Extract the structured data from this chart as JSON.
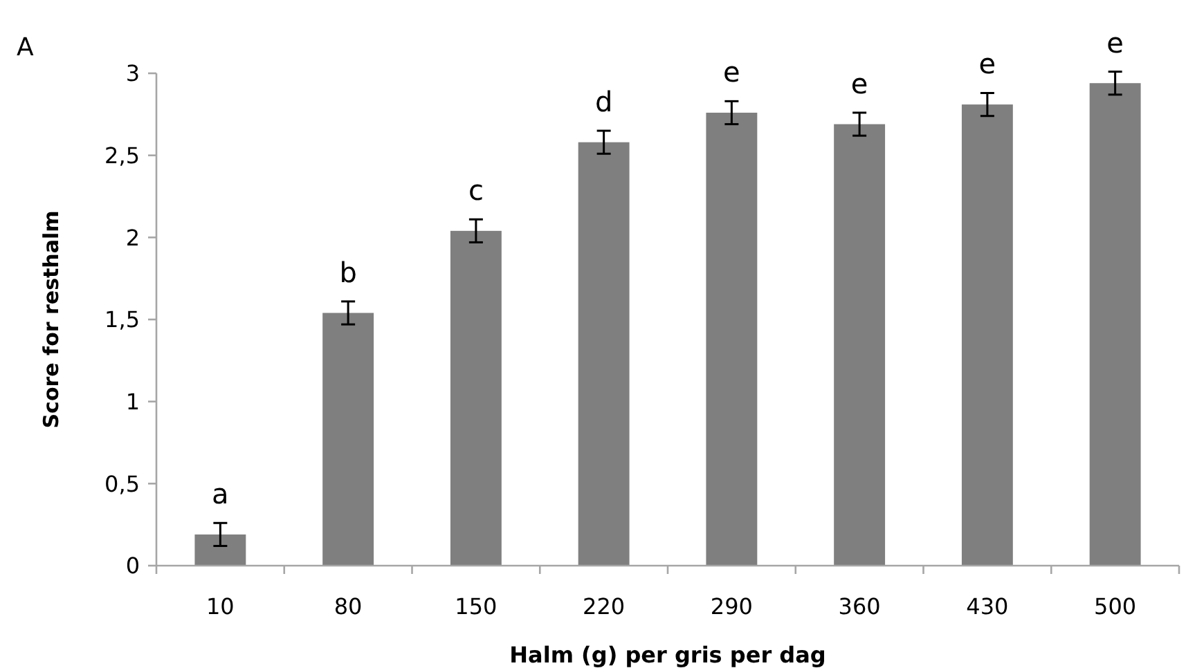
{
  "chart_data": {
    "type": "bar",
    "xlabel": "Halm (g) per gris per dag",
    "ylabel": "Score for resthalm",
    "categories": [
      "10",
      "80",
      "150",
      "220",
      "290",
      "360",
      "430",
      "500"
    ],
    "values": [
      0.19,
      1.54,
      2.04,
      2.58,
      2.76,
      2.69,
      2.81,
      2.94
    ],
    "errors": [
      0.07,
      0.07,
      0.07,
      0.07,
      0.07,
      0.07,
      0.07,
      0.07
    ],
    "color": "#7f7f7f",
    "ylim": [
      0,
      3
    ],
    "yticks": [
      0,
      {
        "value": 0.5,
        "label": "0,5"
      },
      1,
      {
        "value": 1.5,
        "label": "1,5"
      },
      2,
      {
        "value": 2.5,
        "label": "2,5"
      },
      3
    ],
    "grid": false,
    "annotations": [
      "A",
      "a",
      "b",
      "c",
      "d",
      "e",
      "e",
      "e",
      "e"
    ]
  }
}
